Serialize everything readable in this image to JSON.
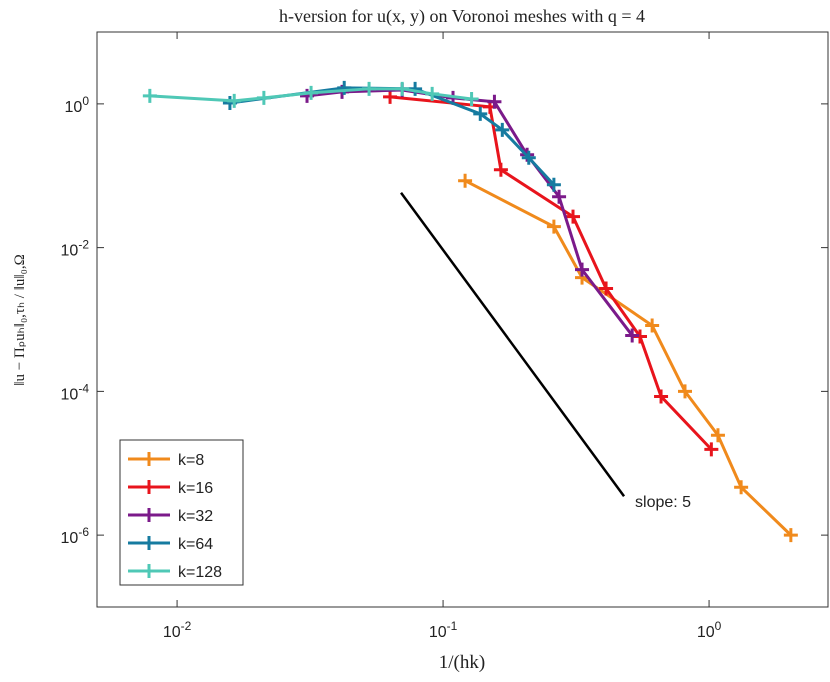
{
  "chart_data": {
    "type": "line",
    "title": "h-version for u(x, y) on Voronoi meshes with q = 4",
    "x_label": "1/(hk)",
    "y_label": "‖u − Πₚuₕ‖₀,τₕ / ‖u‖₀,Ω",
    "xscale": "log",
    "yscale": "log",
    "xlim": [
      0.005,
      2.8
    ],
    "ylim": [
      1e-07,
      10
    ],
    "xticks": [
      {
        "value": 0.01,
        "label": "10^-2"
      },
      {
        "value": 0.1,
        "label": "10^-1"
      },
      {
        "value": 1,
        "label": "10^0"
      }
    ],
    "yticks": [
      {
        "value": 1e-06,
        "label": "10^-6"
      },
      {
        "value": 0.0001,
        "label": "10^-4"
      },
      {
        "value": 0.01,
        "label": "10^-2"
      },
      {
        "value": 1,
        "label": "10^0"
      }
    ],
    "legend": "lower left",
    "series": [
      {
        "name": "k=8",
        "color": "#f08a1c",
        "x": [
          0.121,
          0.261,
          0.333,
          0.611,
          0.812,
          1.08,
          1.32,
          2.03
        ],
        "values": [
          0.0853,
          0.0196,
          0.00383,
          0.000826,
          0.0001,
          2.45e-05,
          4.64e-06,
          1e-06
        ]
      },
      {
        "name": "k=16",
        "color": "#e8141c",
        "x": [
          0.0632,
          0.15,
          0.165,
          0.308,
          0.41,
          0.55,
          0.66,
          1.02
        ],
        "values": [
          1.25,
          0.91,
          0.121,
          0.027,
          0.0027,
          0.00058,
          8.5e-05,
          1.56e-05
        ]
      },
      {
        "name": "k=32",
        "color": "#7b1a8a",
        "x": [
          0.0308,
          0.0417,
          0.0702,
          0.109,
          0.156,
          0.207,
          0.273,
          0.333,
          0.514
        ],
        "values": [
          1.29,
          1.47,
          1.56,
          1.21,
          1.07,
          0.196,
          0.051,
          0.00494,
          0.0006
        ]
      },
      {
        "name": "k=64",
        "color": "#167ba0",
        "x": [
          0.0158,
          0.0425,
          0.0785,
          0.138,
          0.167,
          0.21,
          0.261
        ],
        "values": [
          1.03,
          1.67,
          1.62,
          0.726,
          0.435,
          0.178,
          0.075
        ]
      },
      {
        "name": "k=128",
        "color": "#4fc8b6",
        "x": [
          0.0079,
          0.0164,
          0.0212,
          0.0319,
          0.0527,
          0.0702,
          0.091,
          0.128
        ],
        "values": [
          1.29,
          1.1,
          1.21,
          1.42,
          1.62,
          1.62,
          1.38,
          1.17
        ]
      }
    ],
    "annotation": {
      "text": "slope: 5",
      "x": [
        0.0695,
        0.479
      ],
      "y": [
        0.058,
        3.48e-06
      ]
    }
  }
}
